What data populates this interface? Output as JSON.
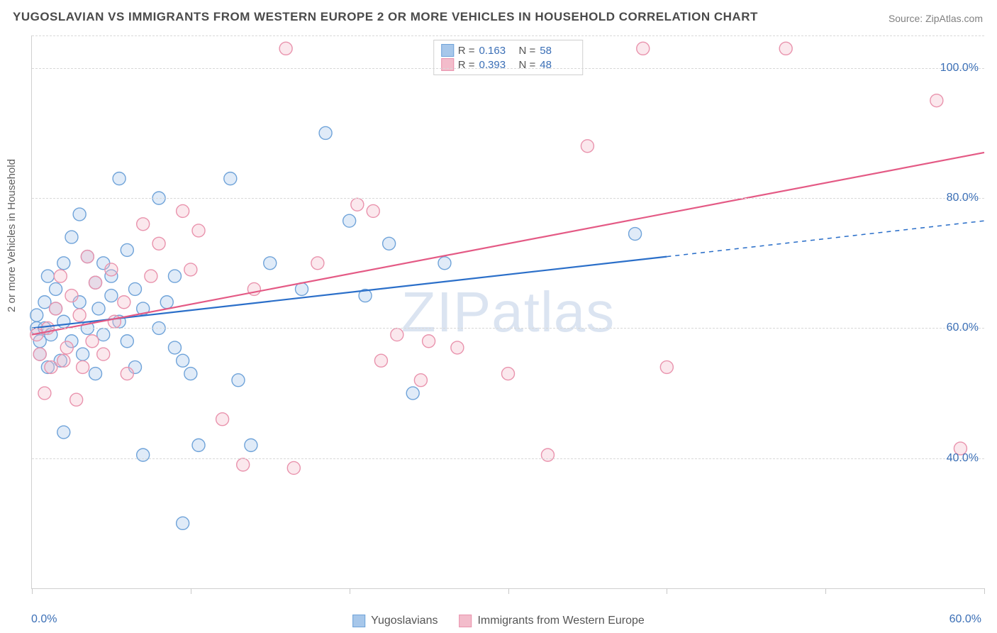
{
  "title": "YUGOSLAVIAN VS IMMIGRANTS FROM WESTERN EUROPE 2 OR MORE VEHICLES IN HOUSEHOLD CORRELATION CHART",
  "source": "Source: ZipAtlas.com",
  "yaxis_label": "2 or more Vehicles in Household",
  "watermark": "ZIPatlas",
  "chart": {
    "type": "scatter",
    "xlim": [
      0,
      60
    ],
    "ylim": [
      20,
      105
    ],
    "background_color": "#ffffff",
    "grid_color": "#d8d8d8",
    "tick_color": "#3b6fb6",
    "axis_color": "#d0d0d0",
    "marker_radius": 9,
    "marker_fill_opacity": 0.35,
    "marker_stroke_width": 1.4,
    "line_width": 2.2,
    "yticks": [
      40,
      60,
      80,
      100
    ],
    "ytick_labels": [
      "40.0%",
      "60.0%",
      "80.0%",
      "100.0%"
    ],
    "xticks": [
      0,
      10,
      20,
      30,
      40,
      50,
      60
    ],
    "x_axis_labels": [
      {
        "value": 0,
        "text": "0.0%"
      },
      {
        "value": 60,
        "text": "60.0%"
      }
    ],
    "series": [
      {
        "id": "yugoslavians",
        "label": "Yugoslavians",
        "color_fill": "#a7c7ea",
        "color_stroke": "#6fa3d9",
        "line_color": "#2b6fc9",
        "R": "0.163",
        "N": "58",
        "regression": {
          "solid": {
            "x1": 0,
            "y1": 60,
            "x2": 40,
            "y2": 71
          },
          "dashed": {
            "x1": 40,
            "y1": 71,
            "x2": 60,
            "y2": 76.5
          }
        },
        "points": [
          [
            0.3,
            60
          ],
          [
            0.3,
            62
          ],
          [
            0.5,
            58
          ],
          [
            0.5,
            56
          ],
          [
            0.8,
            60
          ],
          [
            0.8,
            64
          ],
          [
            1,
            54
          ],
          [
            1,
            68
          ],
          [
            1.2,
            59
          ],
          [
            1.5,
            63
          ],
          [
            1.5,
            66
          ],
          [
            1.8,
            55
          ],
          [
            2,
            61
          ],
          [
            2,
            70
          ],
          [
            2,
            44
          ],
          [
            2.5,
            74
          ],
          [
            2.5,
            58
          ],
          [
            3,
            64
          ],
          [
            3,
            77.5
          ],
          [
            3.2,
            56
          ],
          [
            3.5,
            71
          ],
          [
            3.5,
            60
          ],
          [
            4,
            67
          ],
          [
            4,
            53
          ],
          [
            4.2,
            63
          ],
          [
            4.5,
            70
          ],
          [
            4.5,
            59
          ],
          [
            5,
            65
          ],
          [
            5,
            68
          ],
          [
            5.5,
            83
          ],
          [
            5.5,
            61
          ],
          [
            6,
            58
          ],
          [
            6,
            72
          ],
          [
            6.5,
            54
          ],
          [
            6.5,
            66
          ],
          [
            7,
            63
          ],
          [
            7,
            40.5
          ],
          [
            8,
            80
          ],
          [
            8,
            60
          ],
          [
            8.5,
            64
          ],
          [
            9,
            68
          ],
          [
            9,
            57
          ],
          [
            9.5,
            55
          ],
          [
            9.5,
            30
          ],
          [
            10,
            53
          ],
          [
            10.5,
            42
          ],
          [
            12.5,
            83
          ],
          [
            13,
            52
          ],
          [
            13.8,
            42
          ],
          [
            15,
            70
          ],
          [
            17,
            66
          ],
          [
            18.5,
            90
          ],
          [
            20,
            76.5
          ],
          [
            21,
            65
          ],
          [
            22.5,
            73
          ],
          [
            24,
            50
          ],
          [
            26,
            70
          ],
          [
            38,
            74.5
          ]
        ]
      },
      {
        "id": "immigrants_we",
        "label": "Immigrants from Western Europe",
        "color_fill": "#f3bccb",
        "color_stroke": "#e993ad",
        "line_color": "#e45a85",
        "R": "0.393",
        "N": "48",
        "regression": {
          "solid": {
            "x1": 0,
            "y1": 59,
            "x2": 60,
            "y2": 87
          },
          "dashed": null
        },
        "points": [
          [
            0.3,
            59
          ],
          [
            0.5,
            56
          ],
          [
            0.8,
            50
          ],
          [
            1,
            60
          ],
          [
            1.2,
            54
          ],
          [
            1.5,
            63
          ],
          [
            1.8,
            68
          ],
          [
            2,
            55
          ],
          [
            2.2,
            57
          ],
          [
            2.5,
            65
          ],
          [
            2.8,
            49
          ],
          [
            3,
            62
          ],
          [
            3.2,
            54
          ],
          [
            3.5,
            71
          ],
          [
            3.8,
            58
          ],
          [
            4,
            67
          ],
          [
            4.5,
            56
          ],
          [
            5,
            69
          ],
          [
            5.2,
            61
          ],
          [
            5.8,
            64
          ],
          [
            6,
            53
          ],
          [
            7,
            76
          ],
          [
            7.5,
            68
          ],
          [
            8,
            73
          ],
          [
            9.5,
            78
          ],
          [
            10,
            69
          ],
          [
            10.5,
            75
          ],
          [
            12,
            46
          ],
          [
            13.3,
            39
          ],
          [
            14,
            66
          ],
          [
            16,
            103
          ],
          [
            16.5,
            38.5
          ],
          [
            18,
            70
          ],
          [
            20.5,
            79
          ],
          [
            21.5,
            78
          ],
          [
            22,
            55
          ],
          [
            23,
            59
          ],
          [
            24.5,
            52
          ],
          [
            25,
            58
          ],
          [
            26.8,
            57
          ],
          [
            30,
            53
          ],
          [
            32.5,
            40.5
          ],
          [
            35,
            88
          ],
          [
            38.5,
            103
          ],
          [
            40,
            54
          ],
          [
            47.5,
            103
          ],
          [
            57,
            95
          ],
          [
            58.5,
            41.5
          ]
        ]
      }
    ]
  },
  "stats_legend": {
    "labels": {
      "R": "R =",
      "N": "N ="
    }
  },
  "bottom_legend_items": [
    "yugoslavians",
    "immigrants_we"
  ]
}
